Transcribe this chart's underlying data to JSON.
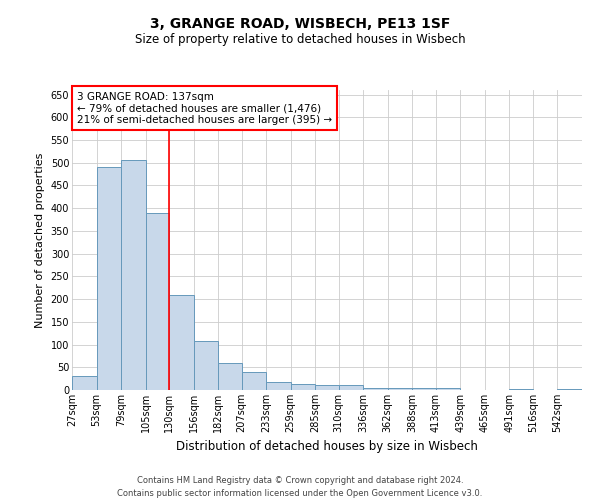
{
  "title": "3, GRANGE ROAD, WISBECH, PE13 1SF",
  "subtitle": "Size of property relative to detached houses in Wisbech",
  "xlabel": "Distribution of detached houses by size in Wisbech",
  "ylabel": "Number of detached properties",
  "footer_line1": "Contains HM Land Registry data © Crown copyright and database right 2024.",
  "footer_line2": "Contains public sector information licensed under the Open Government Licence v3.0.",
  "annotation_line1": "3 GRANGE ROAD: 137sqm",
  "annotation_line2": "← 79% of detached houses are smaller (1,476)",
  "annotation_line3": "21% of semi-detached houses are larger (395) →",
  "bar_color": "#c8d8ea",
  "bar_edge_color": "#6699bb",
  "red_line_x": 130,
  "categories": [
    "27sqm",
    "53sqm",
    "79sqm",
    "105sqm",
    "130sqm",
    "156sqm",
    "182sqm",
    "207sqm",
    "233sqm",
    "259sqm",
    "285sqm",
    "310sqm",
    "336sqm",
    "362sqm",
    "388sqm",
    "413sqm",
    "439sqm",
    "465sqm",
    "491sqm",
    "516sqm",
    "542sqm"
  ],
  "bin_edges": [
    27,
    53,
    79,
    105,
    130,
    156,
    182,
    207,
    233,
    259,
    285,
    310,
    336,
    362,
    388,
    413,
    439,
    465,
    491,
    516,
    542,
    568
  ],
  "values": [
    30,
    490,
    505,
    390,
    210,
    107,
    60,
    40,
    18,
    14,
    11,
    10,
    5,
    5,
    5,
    5,
    1,
    1,
    3,
    1,
    3
  ],
  "ylim": [
    0,
    660
  ],
  "yticks": [
    0,
    50,
    100,
    150,
    200,
    250,
    300,
    350,
    400,
    450,
    500,
    550,
    600,
    650
  ],
  "background_color": "#ffffff",
  "grid_color": "#cccccc",
  "title_fontsize": 10,
  "subtitle_fontsize": 8.5,
  "ylabel_fontsize": 8,
  "xlabel_fontsize": 8.5,
  "tick_fontsize": 7,
  "annotation_fontsize": 7.5,
  "footer_fontsize": 6
}
